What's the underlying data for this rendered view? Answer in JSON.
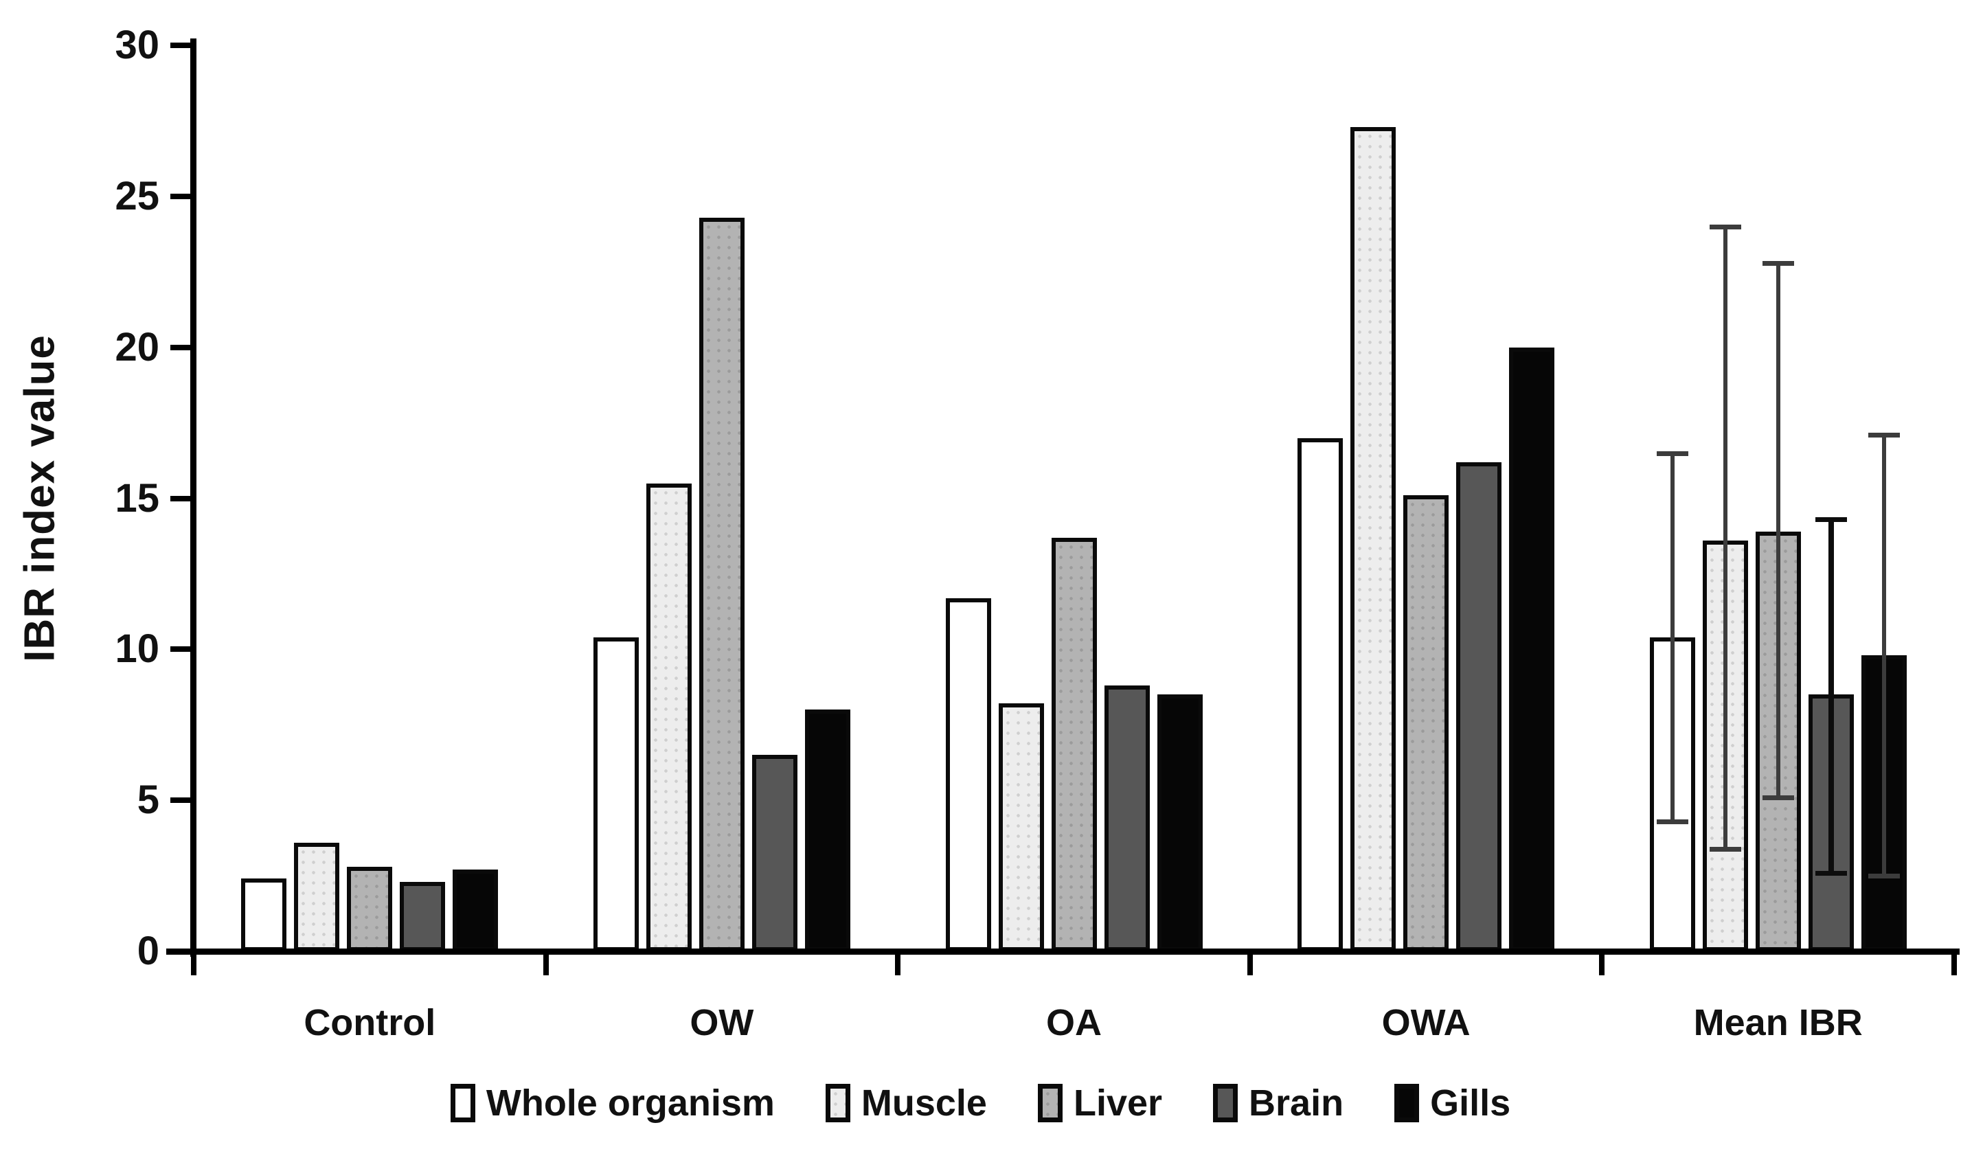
{
  "chart_data": {
    "type": "bar",
    "title": "",
    "xlabel": "",
    "ylabel": "IBR index value",
    "ylim": [
      0,
      30
    ],
    "yticks": [
      0,
      5,
      10,
      15,
      20,
      25,
      30
    ],
    "grid": false,
    "legend_position": "bottom",
    "categories": [
      "Control",
      "OW",
      "OA",
      "OWA",
      "Mean IBR"
    ],
    "series": [
      {
        "name": "Whole organism",
        "style": "s0",
        "fill": "#ffffff",
        "pattern": "none",
        "error_color": "#3c3c3c",
        "values": [
          2.4,
          10.4,
          11.7,
          17.0,
          10.4
        ],
        "errors": [
          null,
          null,
          null,
          null,
          {
            "low": 4.3,
            "high": 16.5
          }
        ]
      },
      {
        "name": "Muscle",
        "style": "s1",
        "fill": "#ededed",
        "pattern": "light-dots",
        "error_color": "#3c3c3c",
        "values": [
          3.6,
          15.5,
          8.2,
          27.3,
          13.6
        ],
        "errors": [
          null,
          null,
          null,
          null,
          {
            "low": 3.4,
            "high": 24.0
          }
        ]
      },
      {
        "name": "Liver",
        "style": "s2",
        "fill": "#b3b3b3",
        "pattern": "mid-dots",
        "error_color": "#3c3c3c",
        "values": [
          2.8,
          24.3,
          13.7,
          15.1,
          13.9
        ],
        "errors": [
          null,
          null,
          null,
          null,
          {
            "low": 5.1,
            "high": 22.8
          }
        ]
      },
      {
        "name": "Brain",
        "style": "s3",
        "fill": "#575757",
        "pattern": "solid",
        "error_color": "#0d0d0d",
        "values": [
          2.3,
          6.5,
          8.8,
          16.2,
          8.5
        ],
        "errors": [
          null,
          null,
          null,
          null,
          {
            "low": 2.6,
            "high": 14.3
          }
        ]
      },
      {
        "name": "Gills",
        "style": "s4",
        "fill": "#060606",
        "pattern": "solid",
        "error_color": "#3c3c3c",
        "values": [
          2.7,
          8.0,
          8.5,
          20.0,
          9.8
        ],
        "errors": [
          null,
          null,
          null,
          null,
          {
            "low": 2.5,
            "high": 17.1
          }
        ]
      }
    ],
    "axis_color": "#000000",
    "bar_border_color": "#0a0a0a"
  }
}
